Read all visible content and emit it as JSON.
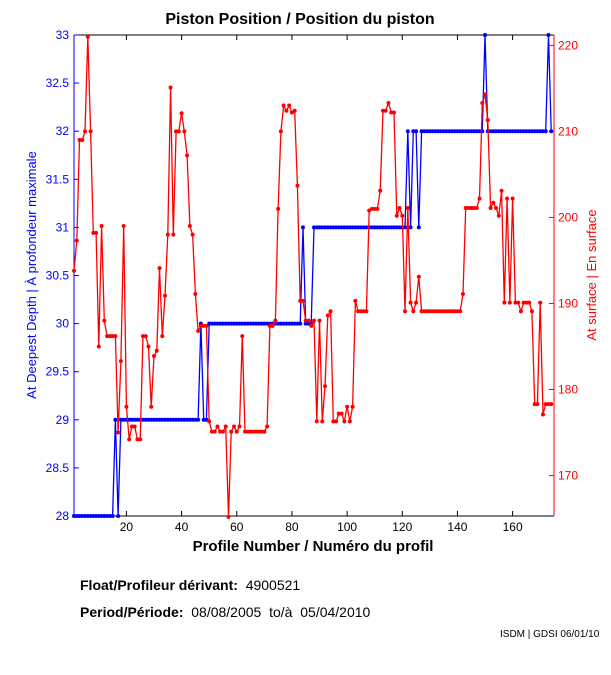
{
  "chart_data": {
    "type": "line",
    "title": "Piston Position / Position du piston",
    "xlabel": "Profile Number / Numéro du profil",
    "ylabel_left": "At Deepest Depth | À profondeur maximale",
    "ylabel_right": "At surface | En surface",
    "xlim": [
      1,
      175
    ],
    "ylim_left": [
      28,
      33
    ],
    "ylim_right": [
      165.3,
      221.2
    ],
    "x_ticks": [
      20,
      40,
      60,
      80,
      100,
      120,
      140,
      160
    ],
    "y_ticks_left": [
      28,
      28.5,
      29,
      29.5,
      30,
      30.5,
      31,
      31.5,
      32,
      32.5,
      33
    ],
    "y_ticks_right": [
      170,
      180,
      190,
      200,
      210,
      220
    ],
    "grid": false,
    "series": [
      {
        "name": "At Deepest Depth",
        "axis": "left",
        "color": "#0000ff",
        "runs": [
          [
            1,
            15,
            28
          ],
          [
            16,
            16,
            29
          ],
          [
            17,
            17,
            28
          ],
          [
            18,
            46,
            29
          ],
          [
            47,
            47,
            30
          ],
          [
            48,
            49,
            29
          ],
          [
            50,
            83,
            30
          ],
          [
            84,
            84,
            31
          ],
          [
            85,
            87,
            30
          ],
          [
            88,
            121,
            31
          ],
          [
            122,
            122,
            32
          ],
          [
            123,
            123,
            31
          ],
          [
            124,
            125,
            32
          ],
          [
            126,
            126,
            31
          ],
          [
            127,
            149,
            32
          ],
          [
            150,
            150,
            33
          ],
          [
            151,
            172,
            32
          ],
          [
            173,
            173,
            33
          ],
          [
            174,
            174,
            32
          ]
        ]
      },
      {
        "name": "At surface",
        "axis": "right",
        "color": "#ff0000",
        "values": [
          193.8,
          197.3,
          209,
          209,
          210,
          221,
          210,
          198.2,
          198.2,
          185,
          199,
          188,
          186.2,
          186.2,
          186.2,
          186.2,
          175,
          183.3,
          199,
          178,
          174.2,
          175.7,
          175.7,
          174.2,
          174.2,
          186.2,
          186.2,
          185,
          178,
          183.9,
          184.5,
          194.1,
          186.2,
          190.9,
          198,
          215.1,
          198,
          210,
          210,
          212.1,
          210,
          207.2,
          199,
          198,
          191.1,
          186.8,
          187.4,
          187.4,
          187.4,
          176.3,
          175.1,
          175.1,
          175.7,
          175.1,
          175.1,
          175.7,
          165.2,
          175.1,
          175.7,
          175.1,
          175.7,
          186.2,
          175.1,
          175.1,
          175.1,
          175.1,
          175.1,
          175.1,
          175.1,
          175.1,
          175.7,
          187.4,
          187.4,
          188,
          201,
          210,
          213,
          212.4,
          213,
          212.2,
          212.4,
          203.7,
          190.3,
          190.3,
          188,
          188,
          187.4,
          188,
          176.3,
          188,
          176.3,
          180.4,
          188.6,
          189.1,
          176.3,
          176.3,
          177.2,
          177.2,
          176.3,
          178,
          176.3,
          178,
          190.3,
          189.1,
          189.1,
          189.1,
          189.1,
          200.8,
          201,
          201,
          201,
          203.1,
          212.4,
          212.4,
          213.3,
          212.2,
          212.2,
          200.2,
          201.1,
          200.2,
          189.1,
          201.1,
          190.1,
          189.1,
          190.1,
          193.1,
          189.1,
          189.1,
          189.1,
          189.1,
          189.1,
          189.1,
          189.1,
          189.1,
          189.1,
          189.1,
          189.1,
          189.1,
          189.1,
          189.1,
          189.1,
          191.1,
          201.1,
          201.1,
          201.1,
          201.1,
          201.1,
          202.2,
          213.3,
          214.3,
          211.3,
          201.1,
          201.7,
          201.1,
          200.2,
          203.1,
          190.1,
          202.2,
          190.1,
          202.2,
          190.1,
          190.1,
          189.1,
          190.1,
          190.1,
          190.1,
          189.1,
          178.3,
          178.3,
          190.1,
          177.1,
          178.3,
          178.3,
          178.3
        ]
      }
    ]
  },
  "info": {
    "float_label": "Float/Profileur dérivant:",
    "float_value": "4900521",
    "period_label": "Period/Période:",
    "period_start": "08/08/2005",
    "period_sep": "to/à",
    "period_end": "05/04/2010",
    "credit": "ISDM | GDSI 06/01/10"
  }
}
